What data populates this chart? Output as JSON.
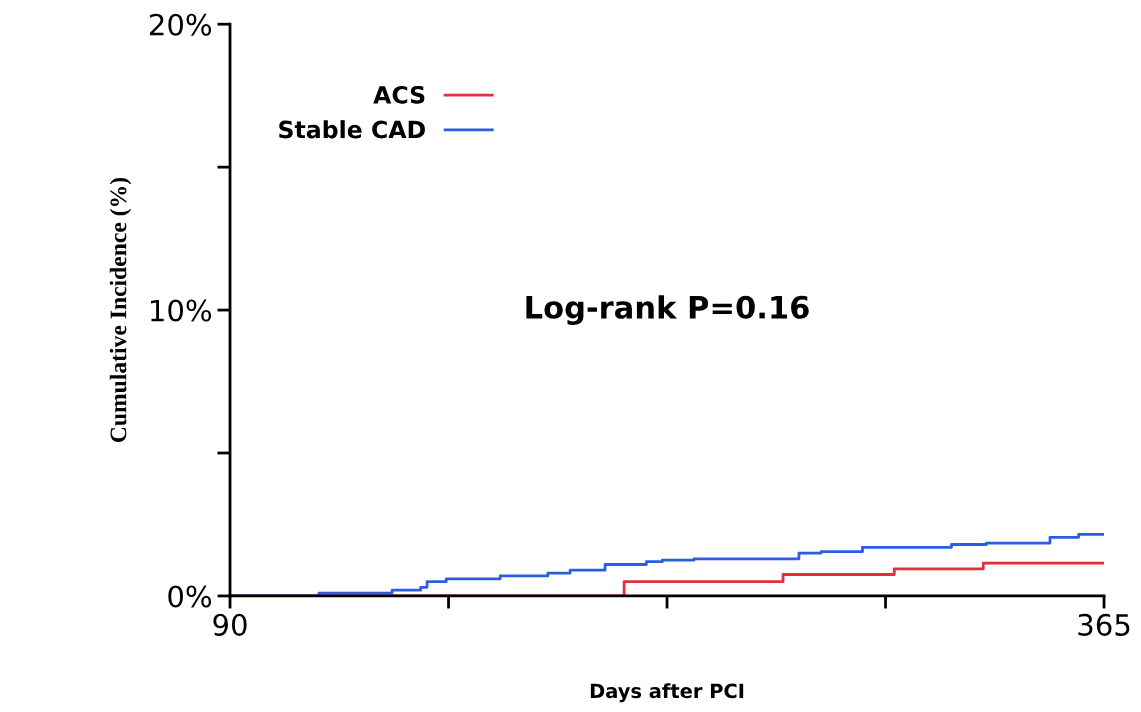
{
  "chart_data": {
    "type": "step",
    "xlabel": "Days after PCI",
    "ylabel": "Cumulative Incidence (%)",
    "xlim": [
      90,
      365
    ],
    "xticks": [
      90,
      {
        "value": 158.75,
        "label": null
      },
      {
        "value": 227.5,
        "label": null
      },
      {
        "value": 296.25,
        "label": null
      },
      365
    ],
    "ylim": [
      0,
      20
    ],
    "yticks": [
      {
        "value": 0,
        "label": "0%"
      },
      {
        "value": 5,
        "label": null
      },
      {
        "value": 10,
        "label": "10%"
      },
      {
        "value": 15,
        "label": null
      },
      {
        "value": 20,
        "label": "20%"
      }
    ],
    "grid": false,
    "legend": "top left",
    "annotations": [
      "Log-rank P=0.16"
    ],
    "series": [
      {
        "name": "ACS",
        "color": "#e0303c",
        "x": [
          90,
          214,
          264,
          299,
          327,
          365
        ],
        "values": [
          0,
          0.5,
          0.75,
          0.95,
          1.15,
          1.15
        ]
      },
      {
        "name": "Stable CAD",
        "color": "#2b5fe0",
        "x": [
          90,
          118,
          141,
          150,
          152,
          158,
          175,
          190,
          197,
          208,
          221,
          226,
          236,
          269,
          276,
          289,
          317,
          328,
          348,
          357,
          365
        ],
        "values": [
          0,
          0.1,
          0.2,
          0.3,
          0.5,
          0.6,
          0.7,
          0.8,
          0.9,
          1.1,
          1.2,
          1.25,
          1.3,
          1.5,
          1.55,
          1.7,
          1.8,
          1.85,
          2.05,
          2.15,
          2.15
        ]
      }
    ]
  }
}
